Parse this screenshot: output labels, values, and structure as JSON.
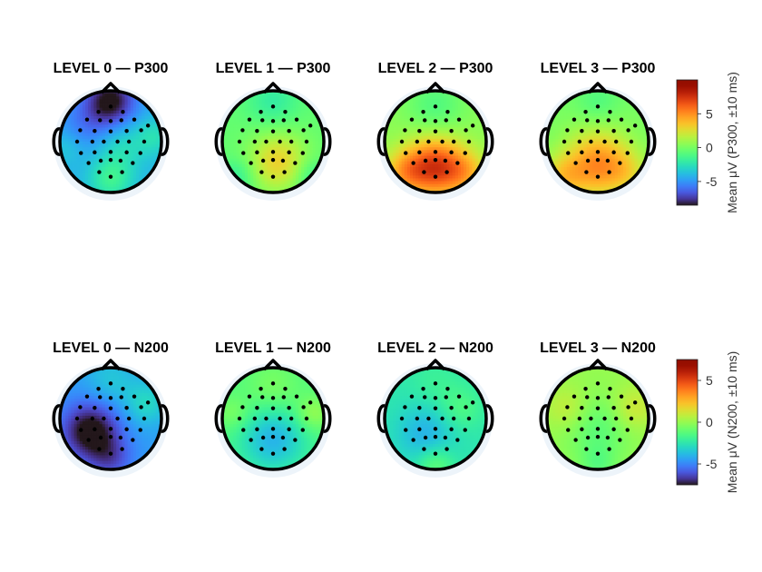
{
  "chart_data": {
    "type": "heatmap",
    "subtype": "eeg-topomap-grid",
    "colormap": "turbo",
    "electrodes": [
      [
        0.0,
        0.92
      ],
      [
        -0.32,
        0.78
      ],
      [
        0.32,
        0.78
      ],
      [
        -0.62,
        0.58
      ],
      [
        -0.28,
        0.56
      ],
      [
        0.0,
        0.54
      ],
      [
        0.28,
        0.56
      ],
      [
        0.62,
        0.58
      ],
      [
        -0.8,
        0.3
      ],
      [
        -0.42,
        0.28
      ],
      [
        0.0,
        0.27
      ],
      [
        0.42,
        0.28
      ],
      [
        0.8,
        0.3
      ],
      [
        -0.88,
        0.0
      ],
      [
        -0.48,
        0.0
      ],
      [
        -0.18,
        0.0
      ],
      [
        0.18,
        0.0
      ],
      [
        0.48,
        0.0
      ],
      [
        0.88,
        0.0
      ],
      [
        -0.78,
        -0.3
      ],
      [
        -0.42,
        -0.28
      ],
      [
        0.0,
        -0.27
      ],
      [
        0.42,
        -0.28
      ],
      [
        0.78,
        -0.3
      ],
      [
        -0.58,
        -0.56
      ],
      [
        -0.26,
        -0.5
      ],
      [
        0.0,
        -0.48
      ],
      [
        0.26,
        -0.5
      ],
      [
        0.58,
        -0.56
      ],
      [
        -0.3,
        -0.8
      ],
      [
        0.0,
        -0.92
      ],
      [
        0.3,
        -0.8
      ],
      [
        0.98,
        0.42
      ]
    ],
    "rows": [
      {
        "component": "P300",
        "colorbar": {
          "label": "Mean μV (P300, ±10 ms)",
          "vmin": -8.5,
          "vmax": 10,
          "ticks": [
            -5,
            0,
            5
          ]
        },
        "maps": [
          {
            "title": "LEVEL 0 — P300",
            "base": -4.2,
            "sources": [
              [
                0.0,
                0.8,
                -4.5,
                0.35
              ],
              [
                -0.5,
                0.3,
                -1.5,
                0.4
              ],
              [
                0.2,
                -0.1,
                1.5,
                0.35
              ],
              [
                0.0,
                -0.75,
                2.5,
                0.3
              ],
              [
                0.85,
                0.1,
                1.5,
                0.25
              ],
              [
                -0.85,
                -0.1,
                1.0,
                0.25
              ]
            ]
          },
          {
            "title": "LEVEL 1 — P300",
            "base": -0.5,
            "sources": [
              [
                0.1,
                -0.4,
                3.5,
                0.4
              ],
              [
                0.0,
                0.8,
                -1.5,
                0.35
              ],
              [
                -0.7,
                -0.7,
                -1.5,
                0.25
              ],
              [
                0.75,
                -0.7,
                -1.5,
                0.25
              ]
            ]
          },
          {
            "title": "LEVEL 2 — P300",
            "base": 0.5,
            "sources": [
              [
                0.0,
                -0.5,
                6.5,
                0.4
              ],
              [
                -0.6,
                -0.6,
                3.0,
                0.3
              ],
              [
                0.6,
                -0.6,
                2.5,
                0.3
              ],
              [
                0.0,
                0.7,
                -1.5,
                0.4
              ]
            ]
          },
          {
            "title": "LEVEL 3 — P300",
            "base": 0.0,
            "sources": [
              [
                0.0,
                -0.45,
                5.0,
                0.45
              ],
              [
                -0.7,
                -0.7,
                2.5,
                0.3
              ],
              [
                0.6,
                -0.6,
                1.5,
                0.3
              ],
              [
                0.0,
                0.8,
                -1.0,
                0.3
              ]
            ]
          }
        ]
      },
      {
        "component": "N200",
        "colorbar": {
          "label": "Mean μV (N200, ±10 ms)",
          "vmin": -7.5,
          "vmax": 7.5,
          "ticks": [
            -5,
            0,
            5
          ]
        },
        "maps": [
          {
            "title": "LEVEL 0 — N200",
            "base": -4.5,
            "sources": [
              [
                -0.4,
                -0.25,
                -3.5,
                0.4
              ],
              [
                0.0,
                -0.8,
                -1.5,
                0.3
              ],
              [
                0.7,
                0.3,
                1.5,
                0.3
              ],
              [
                0.0,
                0.75,
                1.0,
                0.35
              ]
            ]
          },
          {
            "title": "LEVEL 1 — N200",
            "base": -1.5,
            "sources": [
              [
                0.0,
                -0.4,
                -2.5,
                0.45
              ],
              [
                0.0,
                0.6,
                1.0,
                0.4
              ],
              [
                0.8,
                0.1,
                1.5,
                0.25
              ],
              [
                -0.8,
                0.1,
                1.0,
                0.25
              ]
            ]
          },
          {
            "title": "LEVEL 2 — N200",
            "base": -2.5,
            "sources": [
              [
                -0.2,
                -0.3,
                -1.5,
                0.4
              ],
              [
                0.5,
                0.2,
                1.0,
                0.3
              ],
              [
                0.0,
                -0.9,
                1.5,
                0.25
              ],
              [
                0.0,
                0.7,
                0.5,
                0.35
              ]
            ]
          },
          {
            "title": "LEVEL 3 — N200",
            "base": 0.0,
            "sources": [
              [
                0.0,
                -0.2,
                -1.2,
                0.45
              ],
              [
                -0.6,
                0.2,
                1.0,
                0.3
              ],
              [
                0.7,
                0.2,
                1.2,
                0.3
              ],
              [
                0.0,
                -0.9,
                -1.0,
                0.25
              ]
            ]
          }
        ]
      }
    ]
  }
}
